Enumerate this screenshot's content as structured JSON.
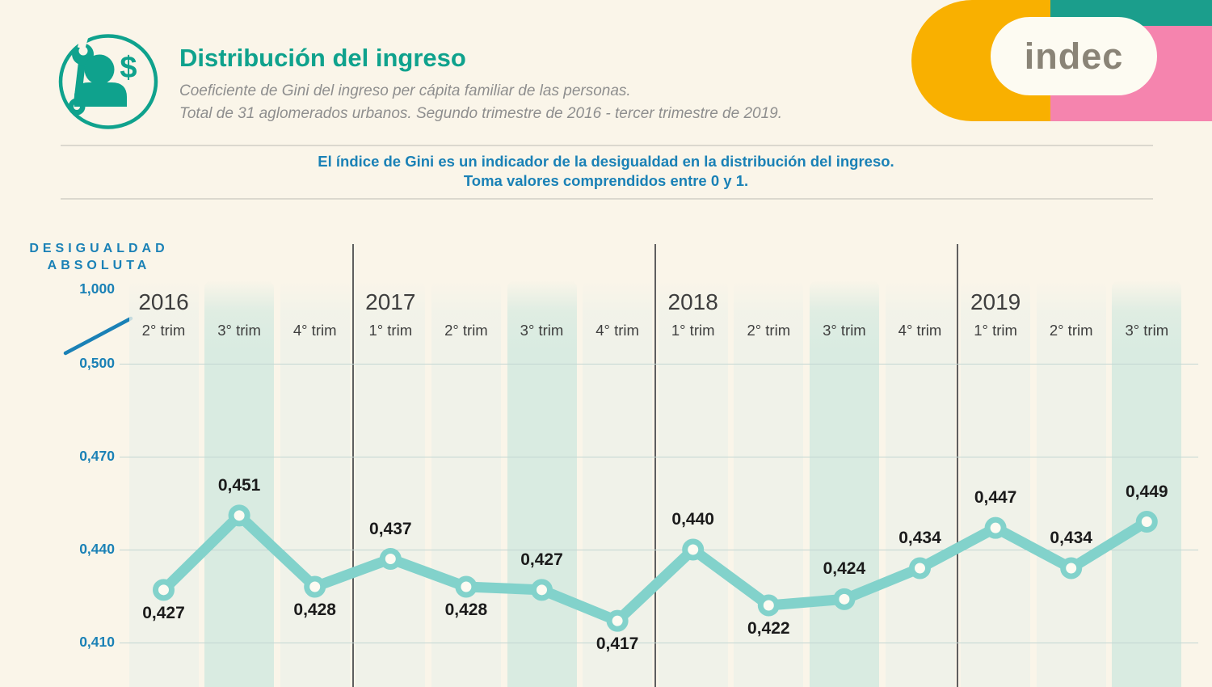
{
  "header": {
    "title": "Distribución del ingreso",
    "subtitle_line1": "Coeficiente de Gini del ingreso per cápita familiar de las personas.",
    "subtitle_line2": "Total de 31 aglomerados urbanos. Segundo trimestre de 2016 - tercer trimestre de 2019.",
    "icon": "person-wrench-dollar-icon",
    "logo_text": "indec"
  },
  "note": {
    "line1": "El índice de Gini es un indicador de la desigualdad en la distribución del ingreso.",
    "line2": "Toma valores comprendidos entre 0 y 1."
  },
  "axis": {
    "title_line1": "DESIGUALDAD",
    "title_line2": "ABSOLUTA"
  },
  "chart_data": {
    "type": "line",
    "title": "Coeficiente de Gini del ingreso per cápita familiar de las personas",
    "categories": [
      "2016 2° trim",
      "2016 3° trim",
      "2016 4° trim",
      "2017 1° trim",
      "2017 2° trim",
      "2017 3° trim",
      "2017 4° trim",
      "2018 1° trim",
      "2018 2° trim",
      "2018 3° trim",
      "2018 4° trim",
      "2019 1° trim",
      "2019 2° trim",
      "2019 3° trim"
    ],
    "groups": [
      {
        "year": "2016",
        "quarters": [
          "2° trim",
          "3° trim",
          "4° trim"
        ]
      },
      {
        "year": "2017",
        "quarters": [
          "1° trim",
          "2° trim",
          "3° trim",
          "4° trim"
        ]
      },
      {
        "year": "2018",
        "quarters": [
          "1° trim",
          "2° trim",
          "3° trim",
          "4° trim"
        ]
      },
      {
        "year": "2019",
        "quarters": [
          "1° trim",
          "2° trim",
          "3° trim"
        ]
      }
    ],
    "values": [
      0.427,
      0.451,
      0.428,
      0.437,
      0.428,
      0.427,
      0.417,
      0.44,
      0.422,
      0.424,
      0.434,
      0.447,
      0.434,
      0.449
    ],
    "point_labels": [
      "0,427",
      "0,451",
      "0,428",
      "0,437",
      "0,428",
      "0,427",
      "0,417",
      "0,440",
      "0,422",
      "0,424",
      "0,434",
      "0,447",
      "0,434",
      "0,449"
    ],
    "label_side": [
      "below",
      "above",
      "below",
      "above",
      "below",
      "above",
      "below",
      "above",
      "below",
      "above",
      "above",
      "above",
      "above",
      "above"
    ],
    "yticks": [
      {
        "label": "0,500",
        "value": 0.5
      },
      {
        "label": "0,470",
        "value": 0.47
      },
      {
        "label": "0,440",
        "value": 0.44
      },
      {
        "label": "0,410",
        "value": 0.41
      }
    ],
    "y_axis_top_label": "1,000",
    "ylim_visible": [
      0.41,
      0.5
    ],
    "highlight_quarter": "3° trim",
    "grid": true,
    "legend": "none"
  },
  "colors": {
    "background": "#FAF5E9",
    "accent_teal": "#0FA28D",
    "accent_blue": "#1A81B6",
    "line": "#82D2CB",
    "marker_fill": "#FDFBF2",
    "band": "#F0F2E9",
    "band_highlight": "#D9EBE1",
    "year_divider": "#5F5F5F",
    "gridline": "#C3D6D2",
    "text_dark": "#3E3E3E",
    "data_label": "#1B1B1B",
    "subtitle_gray": "#8E8E8E",
    "divider": "#DBD8CE",
    "logo_orange": "#F9B000",
    "logo_pink": "#F584AE",
    "logo_teal": "#1B9E8C",
    "logo_text_gray": "#8A8477"
  }
}
